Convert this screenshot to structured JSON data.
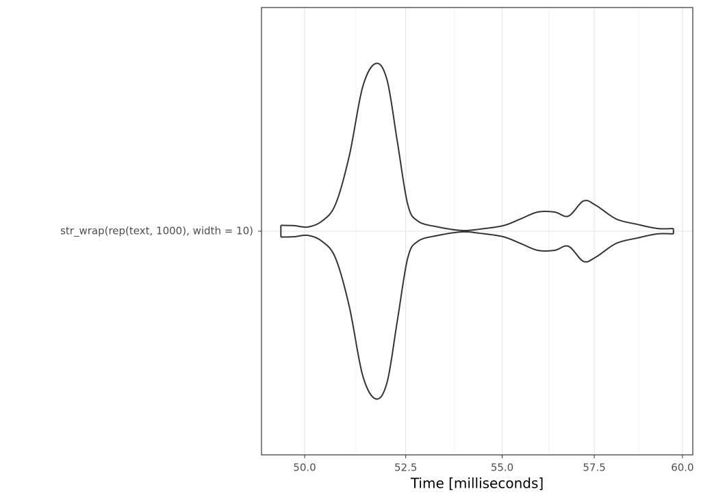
{
  "chart_data": {
    "type": "violin",
    "categories": [
      "str_wrap(rep(text, 1000), width = 10)"
    ],
    "x_label": "Time [milliseconds]",
    "x": [
      49.43,
      49.75,
      50.08,
      50.42,
      50.75,
      51.09,
      51.42,
      51.75,
      52.03,
      52.29,
      52.55,
      52.81,
      53.33,
      53.95,
      54.4,
      55.03,
      55.49,
      55.95,
      56.41,
      56.79,
      57.2,
      57.54,
      58.11,
      58.7,
      59.28,
      59.74
    ],
    "values": [
      0.035,
      0.033,
      0.025,
      0.06,
      0.16,
      0.45,
      0.86,
      1.0,
      0.9,
      0.53,
      0.16,
      0.06,
      0.025,
      0.004,
      0.012,
      0.033,
      0.073,
      0.114,
      0.114,
      0.09,
      0.18,
      0.155,
      0.073,
      0.041,
      0.016,
      0.016
    ],
    "color": "#333333",
    "xlim": [
      48.97,
      60.3
    ],
    "xticks": [
      {
        "value": 50,
        "label": "50.0"
      },
      {
        "value": 52.5,
        "label": "52.5"
      },
      {
        "value": 55,
        "label": "55.0"
      },
      {
        "value": 57.5,
        "label": "57.5"
      },
      {
        "value": 60,
        "label": "60.0"
      }
    ],
    "xminor_ticks": [
      51.25,
      53.75,
      56.25,
      58.75
    ],
    "x_log": true,
    "grid": true
  }
}
